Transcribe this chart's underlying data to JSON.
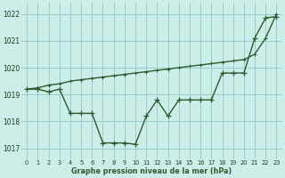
{
  "xlabel": "Graphe pression niveau de la mer (hPa)",
  "background_color": "#cceee8",
  "grid_color": "#99cccc",
  "line_color": "#2d5a2d",
  "x": [
    0,
    1,
    2,
    3,
    4,
    5,
    6,
    7,
    8,
    9,
    10,
    11,
    12,
    13,
    14,
    15,
    16,
    17,
    18,
    19,
    20,
    21,
    22,
    23
  ],
  "y_jagged": [
    1019.2,
    1019.2,
    1019.1,
    1019.2,
    1018.3,
    1018.3,
    1018.3,
    1017.2,
    1017.2,
    1017.2,
    1017.15,
    1018.2,
    1018.8,
    1018.2,
    1018.8,
    1018.8,
    1018.8,
    1018.8,
    1019.8,
    1019.8,
    1019.8,
    1021.1,
    1021.85,
    1021.9
  ],
  "y_smooth": [
    1019.2,
    1019.25,
    1019.35,
    1019.4,
    1019.5,
    1019.55,
    1019.6,
    1019.65,
    1019.7,
    1019.75,
    1019.8,
    1019.85,
    1019.9,
    1019.95,
    1020.0,
    1020.05,
    1020.1,
    1020.15,
    1020.2,
    1020.25,
    1020.3,
    1020.5,
    1021.1,
    1022.0
  ],
  "ylim": [
    1016.6,
    1022.4
  ],
  "xlim": [
    -0.5,
    23.5
  ],
  "yticks": [
    1017,
    1018,
    1019,
    1020,
    1021,
    1022
  ],
  "xticks": [
    0,
    1,
    2,
    3,
    4,
    5,
    6,
    7,
    8,
    9,
    10,
    11,
    12,
    13,
    14,
    15,
    16,
    17,
    18,
    19,
    20,
    21,
    22,
    23
  ],
  "markersize_jagged": 4,
  "markersize_smooth": 3,
  "linewidth": 1.0
}
